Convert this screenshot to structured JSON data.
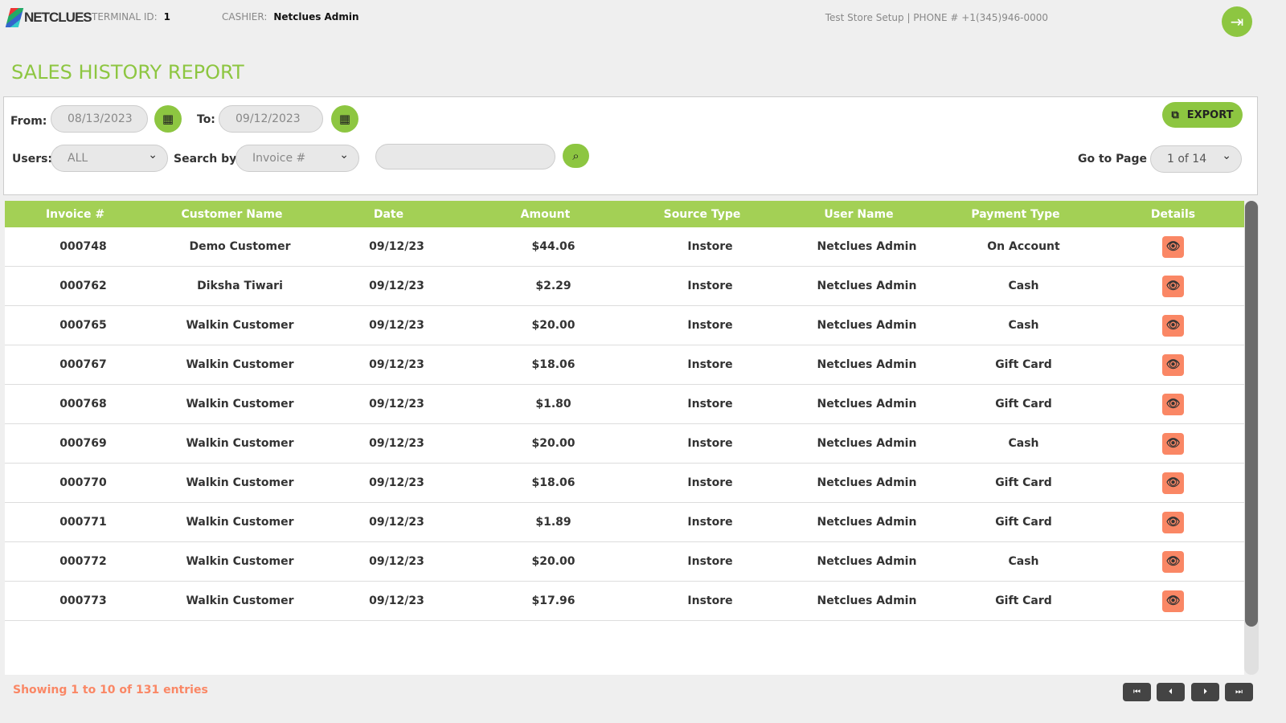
{
  "header": {
    "brand": "NETCLUES",
    "terminal_label": "TERMINAL ID:",
    "terminal_id": "1",
    "cashier_label": "CASHIER:",
    "cashier": "Netclues Admin",
    "store_info": "Test Store Setup | PHONE # +1(345)946-0000"
  },
  "page_title": "SALES HISTORY REPORT",
  "filters": {
    "from_label": "From:",
    "from": "08/13/2023",
    "to_label": "To:",
    "to": "09/12/2023",
    "users_label": "Users:",
    "users": "ALL",
    "search_by_label": "Search by:",
    "search_by": "Invoice #",
    "search_value": "",
    "export": "EXPORT",
    "go_to_page_label": "Go to Page",
    "page": "1 of 14"
  },
  "table": {
    "columns": [
      "Invoice #",
      "Customer Name",
      "Date",
      "Amount",
      "Source Type",
      "User Name",
      "Payment Type",
      "Details"
    ],
    "rows": [
      [
        "000748",
        "Demo Customer",
        "09/12/23",
        "$44.06",
        "Instore",
        "Netclues Admin",
        "On Account"
      ],
      [
        "000762",
        "Diksha Tiwari",
        "09/12/23",
        "$2.29",
        "Instore",
        "Netclues Admin",
        "Cash"
      ],
      [
        "000765",
        "Walkin Customer",
        "09/12/23",
        "$20.00",
        "Instore",
        "Netclues Admin",
        "Cash"
      ],
      [
        "000767",
        "Walkin Customer",
        "09/12/23",
        "$18.06",
        "Instore",
        "Netclues Admin",
        "Gift Card"
      ],
      [
        "000768",
        "Walkin Customer",
        "09/12/23",
        "$1.80",
        "Instore",
        "Netclues Admin",
        "Gift Card"
      ],
      [
        "000769",
        "Walkin Customer",
        "09/12/23",
        "$20.00",
        "Instore",
        "Netclues Admin",
        "Cash"
      ],
      [
        "000770",
        "Walkin Customer",
        "09/12/23",
        "$18.06",
        "Instore",
        "Netclues Admin",
        "Gift Card"
      ],
      [
        "000771",
        "Walkin Customer",
        "09/12/23",
        "$1.89",
        "Instore",
        "Netclues Admin",
        "Gift Card"
      ],
      [
        "000772",
        "Walkin Customer",
        "09/12/23",
        "$20.00",
        "Instore",
        "Netclues Admin",
        "Cash"
      ],
      [
        "000773",
        "Walkin Customer",
        "09/12/23",
        "$17.96",
        "Instore",
        "Netclues Admin",
        "Gift Card"
      ]
    ]
  },
  "footer": {
    "showing": "Showing 1 to 10 of 131 entries"
  },
  "colors": {
    "accent": "#8dc641",
    "header_green": "#a3d055",
    "details_button": "#fa8765"
  }
}
